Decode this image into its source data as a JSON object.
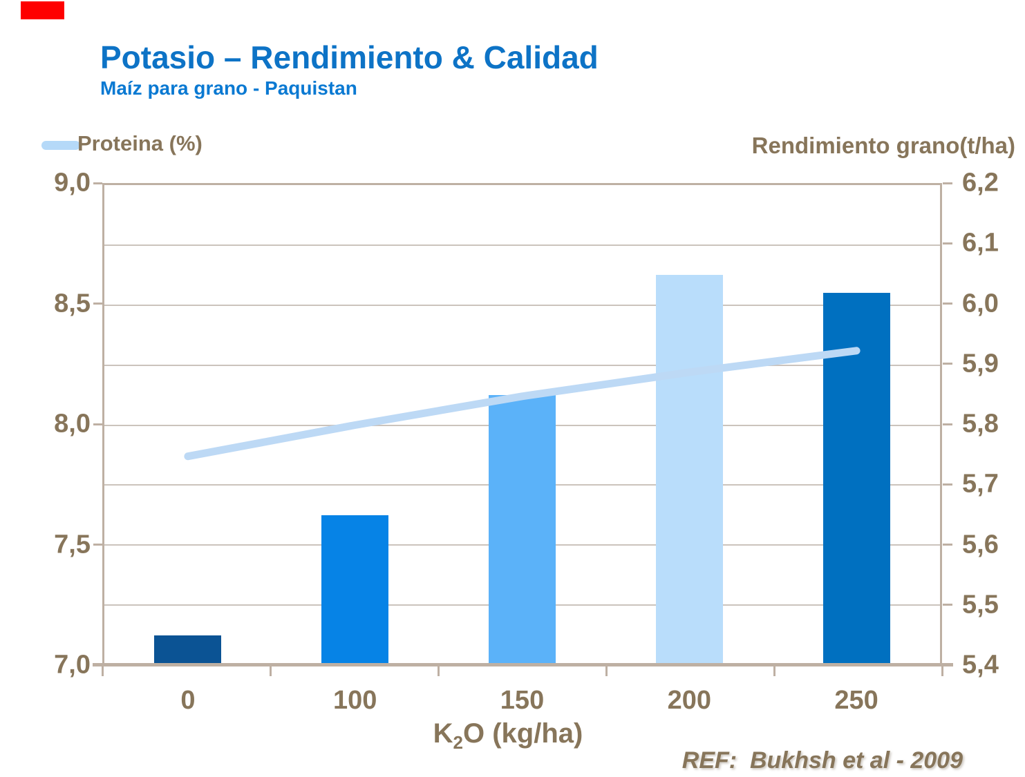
{
  "header": {
    "title": "Potasio – Rendimiento & Calidad",
    "subtitle": "Maíz para grano - Paquistan"
  },
  "legend": {
    "series_label": "Proteina (%)"
  },
  "axis_titles": {
    "right": "Rendimiento grano(t/ha)",
    "x_base": "K",
    "x_subscript": "2",
    "x_rest": "O (kg/ha)"
  },
  "footer": {
    "reference": "REF:  Bukhsh et al - 2009"
  },
  "colors": {
    "title_blue": "#0D73C6",
    "subtitle_blue": "#0A79D2",
    "label_brown": "#87755A",
    "axis_tan": "#BEB0A3",
    "gridline_tan": "#CBC3BC",
    "line_light_blue": "#BDD9F5",
    "legend_swatch_blue": "#B5D9F8",
    "accent_red": "#FE0000"
  },
  "chart_data": {
    "type": "combo-bar-line",
    "categories": [
      "0",
      "100",
      "150",
      "200",
      "250"
    ],
    "series": [
      {
        "name": "Rendimiento grano(t/ha)",
        "type": "bar",
        "axis": "right",
        "values": [
          5.45,
          5.65,
          5.85,
          6.05,
          6.02
        ],
        "colors": [
          "#0B5394",
          "#0683E6",
          "#5BB2F9",
          "#B9DDFB",
          "#0070C0"
        ]
      },
      {
        "name": "Proteina (%)",
        "type": "line",
        "axis": "left",
        "values": [
          7.87,
          8.0,
          8.12,
          8.22,
          8.31
        ],
        "color": "#BDD9F5"
      }
    ],
    "left_axis": {
      "min": 7.0,
      "max": 9.0,
      "ticks": [
        "9,0",
        "8,5",
        "8,0",
        "7,5",
        "7,0"
      ]
    },
    "right_axis": {
      "min": 5.4,
      "max": 6.2,
      "ticks": [
        "6,2",
        "6,1",
        "6,0",
        "5,9",
        "5,8",
        "5,7",
        "5,6",
        "5,5",
        "5,4"
      ]
    },
    "xlabel": "K2O (kg/ha)",
    "grid": true,
    "legend_position": "top-left"
  }
}
